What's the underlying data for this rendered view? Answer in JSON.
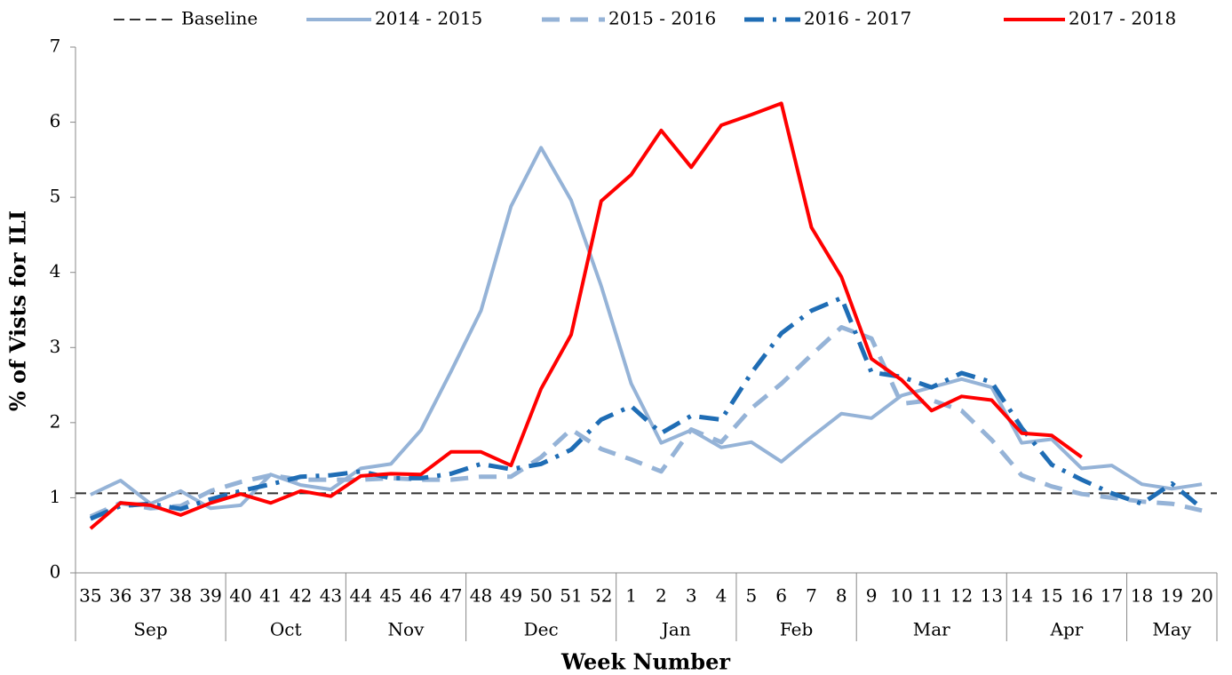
{
  "chart_data": {
    "type": "line",
    "x_label": "Week Number",
    "y_label": "% of Vists for ILI",
    "categories": [
      "35",
      "36",
      "37",
      "38",
      "39",
      "40",
      "41",
      "42",
      "43",
      "44",
      "45",
      "46",
      "47",
      "48",
      "49",
      "50",
      "51",
      "52",
      "1",
      "2",
      "3",
      "4",
      "5",
      "6",
      "7",
      "8",
      "9",
      "10",
      "11",
      "12",
      "13",
      "14",
      "15",
      "16",
      "17",
      "18",
      "19",
      "20"
    ],
    "groups": [
      {
        "label": "Sep",
        "count": 5
      },
      {
        "label": "Oct",
        "count": 4
      },
      {
        "label": "Nov",
        "count": 4
      },
      {
        "label": "Dec",
        "count": 5
      },
      {
        "label": "Jan",
        "count": 4
      },
      {
        "label": "Feb",
        "count": 4
      },
      {
        "label": "Mar",
        "count": 5
      },
      {
        "label": "Apr",
        "count": 4
      },
      {
        "label": "May",
        "count": 3
      }
    ],
    "baseline": {
      "name": "Baseline",
      "value": 1.06,
      "color": "#333333"
    },
    "series": [
      {
        "name": "2014 - 2015",
        "color": "#95b3d7",
        "style": "solid",
        "values": [
          1.04,
          1.23,
          0.92,
          1.09,
          0.86,
          0.9,
          1.31,
          1.17,
          1.11,
          1.39,
          1.45,
          1.9,
          2.68,
          3.49,
          4.88,
          5.66,
          4.96,
          3.82,
          2.52,
          1.73,
          1.9,
          1.67,
          1.74,
          1.48,
          1.81,
          2.12,
          2.06,
          2.36,
          2.47,
          2.58,
          2.47,
          1.73,
          1.78,
          1.39,
          1.43,
          1.18,
          1.12,
          1.18
        ]
      },
      {
        "name": "2015 - 2016",
        "color": "#95b3d7",
        "style": "dash",
        "values": [
          0.75,
          0.93,
          0.86,
          0.89,
          1.09,
          1.21,
          1.3,
          1.24,
          1.24,
          1.24,
          1.26,
          1.24,
          1.24,
          1.28,
          1.28,
          1.54,
          1.91,
          1.65,
          1.51,
          1.35,
          1.91,
          1.74,
          2.19,
          2.52,
          2.9,
          3.27,
          3.12,
          2.25,
          2.3,
          2.16,
          1.77,
          1.3,
          1.15,
          1.05,
          1.0,
          0.95,
          0.92,
          0.83
        ]
      },
      {
        "name": "2016 - 2017",
        "color": "#1f6db5",
        "style": "dashdot",
        "values": [
          0.72,
          0.89,
          0.92,
          0.85,
          0.98,
          1.09,
          1.18,
          1.28,
          1.3,
          1.35,
          1.26,
          1.26,
          1.32,
          1.45,
          1.38,
          1.45,
          1.64,
          2.04,
          2.22,
          1.86,
          2.09,
          2.04,
          2.66,
          3.19,
          3.49,
          3.66,
          2.67,
          2.61,
          2.47,
          2.66,
          2.54,
          1.93,
          1.44,
          1.24,
          1.06,
          0.92,
          1.19,
          0.86
        ]
      },
      {
        "name": "2017 - 2018",
        "color": "#ff0000",
        "style": "solid",
        "values": [
          0.59,
          0.93,
          0.9,
          0.77,
          0.93,
          1.05,
          0.93,
          1.09,
          1.02,
          1.29,
          1.32,
          1.31,
          1.61,
          1.61,
          1.43,
          2.45,
          3.17,
          4.95,
          5.3,
          5.89,
          5.4,
          5.96,
          6.1,
          6.25,
          4.6,
          3.94,
          2.85,
          2.57,
          2.16,
          2.35,
          2.3,
          1.86,
          1.83,
          1.54,
          null,
          null,
          null,
          null
        ]
      }
    ],
    "ylim": [
      0,
      7
    ],
    "yticks": [
      0,
      1,
      2,
      3,
      4,
      5,
      6,
      7
    ]
  }
}
